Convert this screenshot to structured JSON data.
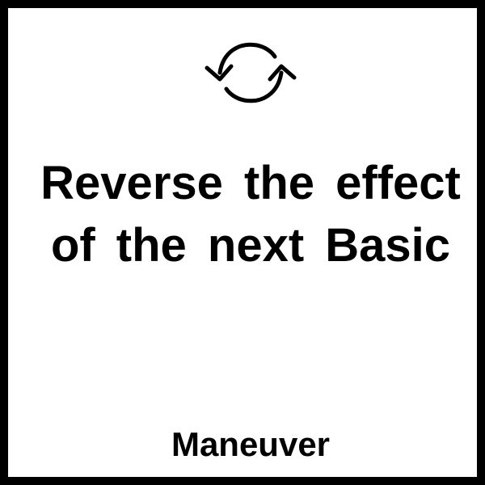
{
  "card": {
    "icon": "refresh-cycle-icon",
    "effect_text": "Reverse the effect of the next Basic",
    "type_label": "Maneuver",
    "colors": {
      "border": "#000000",
      "background": "#ffffff",
      "text": "#000000"
    }
  }
}
